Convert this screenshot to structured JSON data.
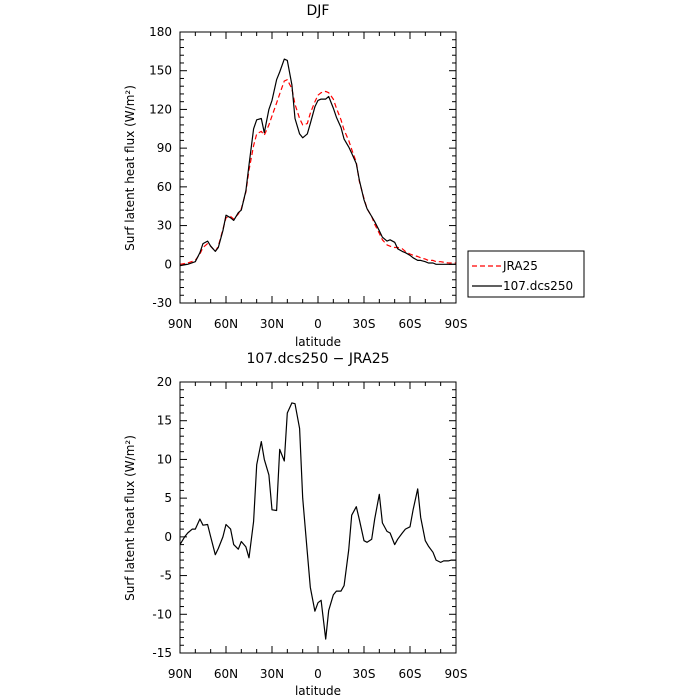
{
  "chart_data": [
    {
      "type": "line",
      "title": "DJF",
      "xlabel": "latitude",
      "ylabel": "Surf latent heat flux (W/m²)",
      "ylim": [
        -30,
        180
      ],
      "yticks": [
        "-30",
        "0",
        "30",
        "60",
        "90",
        "120",
        "150",
        "180"
      ],
      "xticks": [
        "90N",
        "60N",
        "30N",
        "0",
        "30S",
        "60S",
        "90S"
      ],
      "legend": {
        "position": "right",
        "entries": [
          "JRA25",
          "107.dcs250"
        ]
      },
      "series": [
        {
          "name": "JRA25",
          "color": "#ff0000",
          "dash": "dashed",
          "x": [
            -90,
            -85,
            -80,
            -77,
            -75,
            -72,
            -70,
            -67,
            -65,
            -62,
            -60,
            -57,
            -55,
            -52,
            -50,
            -47,
            -45,
            -42,
            -40,
            -37,
            -35,
            -32,
            -30,
            -27,
            -25,
            -22,
            -20,
            -17,
            -15,
            -12,
            -10,
            -7,
            -5,
            -2,
            0,
            2,
            5,
            7,
            10,
            12,
            15,
            17,
            20,
            22,
            25,
            27,
            30,
            32,
            35,
            37,
            40,
            42,
            45,
            47,
            50,
            52,
            55,
            57,
            60,
            62,
            65,
            67,
            70,
            72,
            75,
            77,
            80,
            85,
            90
          ],
          "y": [
            0,
            1,
            3,
            8,
            13,
            16,
            14,
            10,
            14,
            27,
            36,
            37,
            35,
            39,
            43,
            56,
            73,
            92,
            101,
            103,
            100,
            108,
            115,
            125,
            132,
            142,
            143,
            136,
            124,
            113,
            108,
            109,
            117,
            126,
            131,
            133,
            134,
            133,
            128,
            121,
            112,
            104,
            96,
            89,
            79,
            64,
            51,
            43,
            37,
            31,
            24,
            19,
            15,
            14,
            13,
            13,
            12,
            10,
            8,
            7,
            6,
            5,
            4,
            3,
            3,
            2,
            2,
            1,
            1
          ]
        },
        {
          "name": "107.dcs250",
          "color": "#000000",
          "dash": "solid",
          "x": [
            -90,
            -85,
            -80,
            -77,
            -75,
            -72,
            -70,
            -67,
            -65,
            -62,
            -60,
            -57,
            -55,
            -52,
            -50,
            -47,
            -45,
            -42,
            -40,
            -37,
            -35,
            -32,
            -30,
            -27,
            -25,
            -22,
            -20,
            -17,
            -15,
            -12,
            -10,
            -7,
            -5,
            -2,
            0,
            2,
            5,
            7,
            10,
            12,
            15,
            17,
            20,
            22,
            25,
            27,
            30,
            32,
            35,
            37,
            40,
            42,
            45,
            47,
            50,
            52,
            55,
            57,
            60,
            62,
            65,
            67,
            70,
            72,
            75,
            77,
            80,
            85,
            90
          ],
          "y": [
            -1,
            0,
            2,
            9,
            16,
            18,
            14,
            10,
            13,
            26,
            38,
            36,
            34,
            40,
            42,
            57,
            77,
            105,
            112,
            113,
            102,
            120,
            127,
            143,
            149,
            159,
            158,
            139,
            113,
            101,
            98,
            101,
            109,
            122,
            127,
            128,
            128,
            130,
            121,
            114,
            106,
            97,
            91,
            86,
            78,
            65,
            50,
            43,
            37,
            33,
            26,
            21,
            18,
            19,
            17,
            12,
            10,
            9,
            7,
            5,
            3,
            3,
            2,
            1,
            1,
            0,
            0,
            0,
            0
          ]
        }
      ]
    },
    {
      "type": "line",
      "title": "107.dcs250 − JRA25",
      "xlabel": "latitude",
      "ylabel": "Surf latent heat flux (W/m²)",
      "ylim": [
        -15,
        20
      ],
      "yticks": [
        "-15",
        "-10",
        "-5",
        "0",
        "5",
        "10",
        "15",
        "20"
      ],
      "xticks": [
        "90N",
        "60N",
        "30N",
        "0",
        "30S",
        "60S",
        "90S"
      ],
      "series": [
        {
          "name": "",
          "color": "#000000",
          "dash": "solid",
          "x": [
            -90,
            -87,
            -85,
            -82,
            -80,
            -77,
            -75,
            -72,
            -70,
            -67,
            -65,
            -62,
            -60,
            -57,
            -55,
            -52,
            -50,
            -47,
            -45,
            -42,
            -40,
            -37,
            -35,
            -32,
            -30,
            -27,
            -25,
            -22,
            -20,
            -17,
            -15,
            -12,
            -10,
            -7,
            -5,
            -2,
            0,
            2,
            5,
            7,
            10,
            12,
            15,
            17,
            20,
            22,
            25,
            27,
            30,
            32,
            35,
            37,
            40,
            42,
            45,
            47,
            50,
            52,
            55,
            57,
            60,
            62,
            65,
            67,
            70,
            72,
            75,
            77,
            80,
            82,
            85,
            87,
            90
          ],
          "y": [
            -1,
            0,
            0.5,
            1,
            1,
            2.3,
            1.5,
            1.6,
            0,
            -2.3,
            -1.5,
            0,
            1.6,
            1,
            -1,
            -1.6,
            -0.6,
            -1.3,
            -2.7,
            2,
            9.3,
            12.3,
            10,
            8,
            3.5,
            3.4,
            11.3,
            9.8,
            16,
            17.3,
            17.2,
            14,
            5,
            -2,
            -6.5,
            -9.6,
            -8.5,
            -8.2,
            -13.2,
            -9.5,
            -7.5,
            -7,
            -7,
            -6.3,
            -1.7,
            2.8,
            3.9,
            2.2,
            -0.5,
            -0.7,
            -0.3,
            2.3,
            5.5,
            1.8,
            0.7,
            0.5,
            -1,
            -0.3,
            0.5,
            1,
            1.3,
            3.5,
            6.2,
            2.5,
            -0.5,
            -1.2,
            -2,
            -3,
            -3.3,
            -3.1,
            -3.1,
            -3,
            -3
          ]
        }
      ]
    }
  ]
}
